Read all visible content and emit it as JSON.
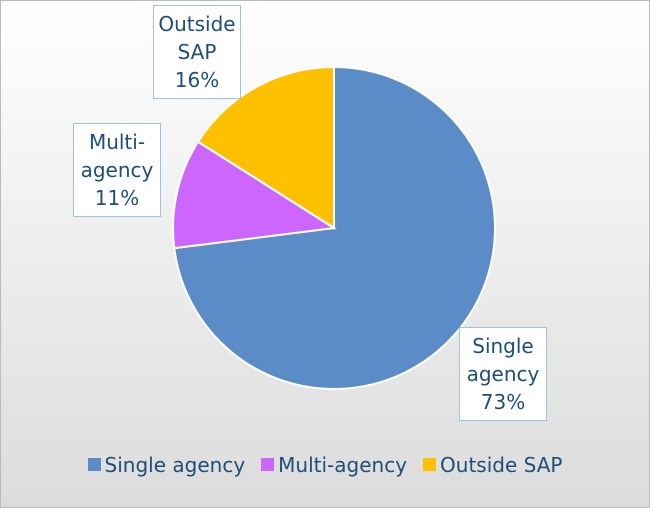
{
  "chart_data": {
    "type": "pie",
    "categories": [
      "Single agency",
      "Multi-agency",
      "Outside SAP"
    ],
    "values": [
      73,
      11,
      16
    ],
    "value_labels": [
      "73%",
      "11%",
      "16%"
    ],
    "colors": [
      "#5b8cc8",
      "#cc66ff",
      "#ffc000"
    ],
    "legend": "bottom"
  }
}
